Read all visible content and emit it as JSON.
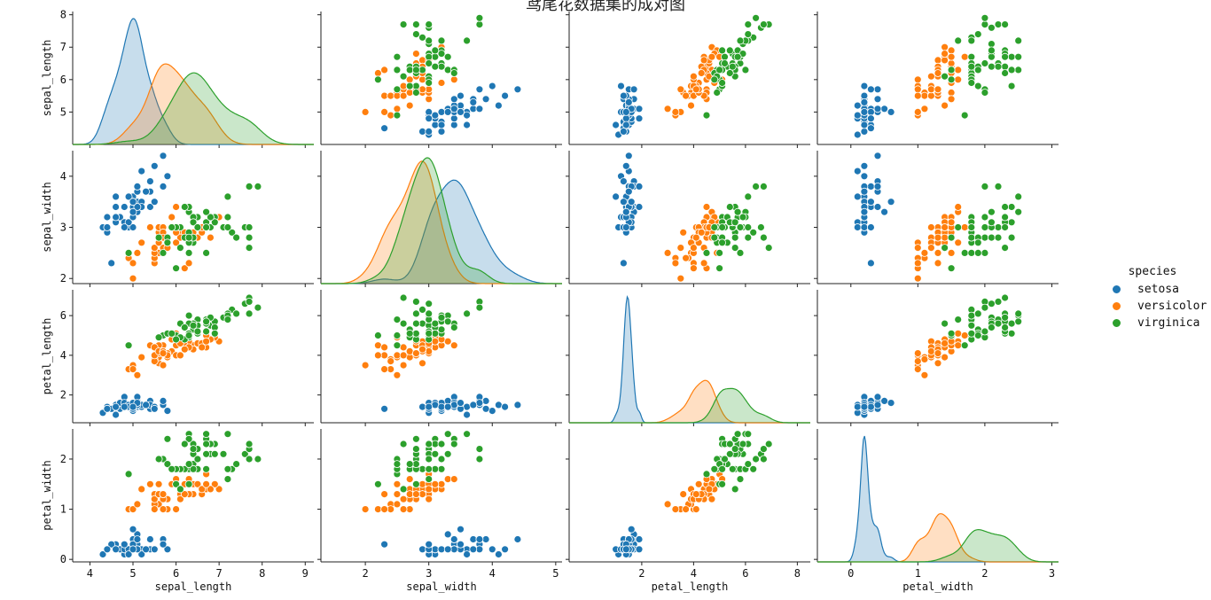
{
  "title": "鸢尾花数据集的成对图",
  "legend": {
    "title": "species",
    "items": [
      {
        "label": "setosa",
        "color": "#1f77b4"
      },
      {
        "label": "versicolor",
        "color": "#ff7f0e"
      },
      {
        "label": "virginica",
        "color": "#2ca02c"
      }
    ]
  },
  "chart_data": {
    "type": "scatter",
    "kind": "pairplot",
    "title": "鸢尾花数据集的成对图",
    "variables": [
      {
        "name": "sepal_length",
        "ticks": [
          4,
          5,
          6,
          7,
          8,
          9
        ],
        "xlim": [
          3.6,
          9.2
        ],
        "ylim": [
          4.0,
          8.1
        ],
        "yticks": [
          5,
          6,
          7,
          8
        ]
      },
      {
        "name": "sepal_width",
        "ticks": [
          2,
          3,
          4,
          5
        ],
        "xlim": [
          1.3,
          5.1
        ],
        "ylim": [
          1.9,
          4.5
        ],
        "yticks": [
          2,
          3,
          4
        ]
      },
      {
        "name": "petal_length",
        "ticks": [
          2,
          4,
          6,
          8
        ],
        "xlim": [
          -0.8,
          8.5
        ],
        "ylim": [
          0.6,
          7.3
        ],
        "yticks": [
          2,
          4,
          6
        ]
      },
      {
        "name": "petal_width",
        "ticks": [
          0,
          1,
          2,
          3
        ],
        "xlim": [
          -0.5,
          3.1
        ],
        "ylim": [
          -0.05,
          2.6
        ],
        "yticks": [
          0,
          1,
          2
        ]
      }
    ],
    "series": [
      {
        "name": "setosa",
        "color": "#1f77b4",
        "points": [
          [
            5.1,
            3.5,
            1.4,
            0.2
          ],
          [
            4.9,
            3.0,
            1.4,
            0.2
          ],
          [
            4.7,
            3.2,
            1.3,
            0.2
          ],
          [
            4.6,
            3.1,
            1.5,
            0.2
          ],
          [
            5.0,
            3.6,
            1.4,
            0.2
          ],
          [
            5.4,
            3.9,
            1.7,
            0.4
          ],
          [
            4.6,
            3.4,
            1.4,
            0.3
          ],
          [
            5.0,
            3.4,
            1.5,
            0.2
          ],
          [
            4.4,
            2.9,
            1.4,
            0.2
          ],
          [
            4.9,
            3.1,
            1.5,
            0.1
          ],
          [
            5.4,
            3.7,
            1.5,
            0.2
          ],
          [
            4.8,
            3.4,
            1.6,
            0.2
          ],
          [
            4.8,
            3.0,
            1.4,
            0.1
          ],
          [
            4.3,
            3.0,
            1.1,
            0.1
          ],
          [
            5.8,
            4.0,
            1.2,
            0.2
          ],
          [
            5.7,
            4.4,
            1.5,
            0.4
          ],
          [
            5.4,
            3.9,
            1.3,
            0.4
          ],
          [
            5.1,
            3.5,
            1.4,
            0.3
          ],
          [
            5.7,
            3.8,
            1.7,
            0.3
          ],
          [
            5.1,
            3.8,
            1.5,
            0.3
          ],
          [
            5.4,
            3.4,
            1.7,
            0.2
          ],
          [
            5.1,
            3.7,
            1.5,
            0.4
          ],
          [
            4.6,
            3.6,
            1.0,
            0.2
          ],
          [
            5.1,
            3.3,
            1.7,
            0.5
          ],
          [
            4.8,
            3.4,
            1.9,
            0.2
          ],
          [
            5.0,
            3.0,
            1.6,
            0.2
          ],
          [
            5.0,
            3.4,
            1.6,
            0.4
          ],
          [
            5.2,
            3.5,
            1.5,
            0.2
          ],
          [
            5.2,
            3.4,
            1.4,
            0.2
          ],
          [
            4.7,
            3.2,
            1.6,
            0.2
          ],
          [
            4.8,
            3.1,
            1.6,
            0.2
          ],
          [
            5.4,
            3.4,
            1.5,
            0.4
          ],
          [
            5.2,
            4.1,
            1.5,
            0.1
          ],
          [
            5.5,
            4.2,
            1.4,
            0.2
          ],
          [
            4.9,
            3.1,
            1.5,
            0.2
          ],
          [
            5.0,
            3.2,
            1.2,
            0.2
          ],
          [
            5.5,
            3.5,
            1.3,
            0.2
          ],
          [
            4.9,
            3.6,
            1.4,
            0.1
          ],
          [
            4.4,
            3.0,
            1.3,
            0.2
          ],
          [
            5.1,
            3.4,
            1.5,
            0.2
          ],
          [
            5.0,
            3.5,
            1.3,
            0.3
          ],
          [
            4.5,
            2.3,
            1.3,
            0.3
          ],
          [
            4.4,
            3.2,
            1.3,
            0.2
          ],
          [
            5.0,
            3.5,
            1.6,
            0.6
          ],
          [
            5.1,
            3.8,
            1.9,
            0.4
          ],
          [
            4.8,
            3.0,
            1.4,
            0.3
          ],
          [
            5.1,
            3.8,
            1.6,
            0.2
          ],
          [
            4.6,
            3.2,
            1.4,
            0.2
          ],
          [
            5.3,
            3.7,
            1.5,
            0.2
          ],
          [
            5.0,
            3.3,
            1.4,
            0.2
          ]
        ]
      },
      {
        "name": "versicolor",
        "color": "#ff7f0e",
        "points": [
          [
            7.0,
            3.2,
            4.7,
            1.4
          ],
          [
            6.4,
            3.2,
            4.5,
            1.5
          ],
          [
            6.9,
            3.1,
            4.9,
            1.5
          ],
          [
            5.5,
            2.3,
            4.0,
            1.3
          ],
          [
            6.5,
            2.8,
            4.6,
            1.5
          ],
          [
            5.7,
            2.8,
            4.5,
            1.3
          ],
          [
            6.3,
            3.3,
            4.7,
            1.6
          ],
          [
            4.9,
            2.4,
            3.3,
            1.0
          ],
          [
            6.6,
            2.9,
            4.6,
            1.3
          ],
          [
            5.2,
            2.7,
            3.9,
            1.4
          ],
          [
            5.0,
            2.0,
            3.5,
            1.0
          ],
          [
            5.9,
            3.0,
            4.2,
            1.5
          ],
          [
            6.0,
            2.2,
            4.0,
            1.0
          ],
          [
            6.1,
            2.9,
            4.7,
            1.4
          ],
          [
            5.6,
            2.9,
            3.6,
            1.3
          ],
          [
            6.7,
            3.1,
            4.4,
            1.4
          ],
          [
            5.6,
            3.0,
            4.5,
            1.5
          ],
          [
            5.8,
            2.7,
            4.1,
            1.0
          ],
          [
            6.2,
            2.2,
            4.5,
            1.5
          ],
          [
            5.6,
            2.5,
            3.9,
            1.1
          ],
          [
            5.9,
            3.2,
            4.8,
            1.8
          ],
          [
            6.1,
            2.8,
            4.0,
            1.3
          ],
          [
            6.3,
            2.5,
            4.9,
            1.5
          ],
          [
            6.1,
            2.8,
            4.7,
            1.2
          ],
          [
            6.4,
            2.9,
            4.3,
            1.3
          ],
          [
            6.6,
            3.0,
            4.4,
            1.4
          ],
          [
            6.8,
            2.8,
            4.8,
            1.4
          ],
          [
            6.7,
            3.0,
            5.0,
            1.7
          ],
          [
            6.0,
            2.9,
            4.5,
            1.5
          ],
          [
            5.7,
            2.6,
            3.5,
            1.0
          ],
          [
            5.5,
            2.4,
            3.8,
            1.1
          ],
          [
            5.5,
            2.4,
            3.7,
            1.0
          ],
          [
            5.8,
            2.7,
            3.9,
            1.2
          ],
          [
            6.0,
            2.7,
            5.1,
            1.6
          ],
          [
            5.4,
            3.0,
            4.5,
            1.5
          ],
          [
            6.0,
            3.4,
            4.5,
            1.6
          ],
          [
            6.7,
            3.1,
            4.7,
            1.5
          ],
          [
            6.3,
            2.3,
            4.4,
            1.3
          ],
          [
            5.6,
            3.0,
            4.1,
            1.3
          ],
          [
            5.5,
            2.5,
            4.0,
            1.3
          ],
          [
            5.5,
            2.6,
            4.4,
            1.2
          ],
          [
            6.1,
            3.0,
            4.6,
            1.4
          ],
          [
            5.8,
            2.6,
            4.0,
            1.2
          ],
          [
            5.0,
            2.3,
            3.3,
            1.0
          ],
          [
            5.6,
            2.7,
            4.2,
            1.3
          ],
          [
            5.7,
            3.0,
            4.2,
            1.2
          ],
          [
            5.7,
            2.9,
            4.2,
            1.3
          ],
          [
            6.2,
            2.9,
            4.3,
            1.3
          ],
          [
            5.1,
            2.5,
            3.0,
            1.1
          ],
          [
            5.7,
            2.8,
            4.1,
            1.3
          ]
        ]
      },
      {
        "name": "virginica",
        "color": "#2ca02c",
        "points": [
          [
            6.3,
            3.3,
            6.0,
            2.5
          ],
          [
            5.8,
            2.7,
            5.1,
            1.9
          ],
          [
            7.1,
            3.0,
            5.9,
            2.1
          ],
          [
            6.3,
            2.9,
            5.6,
            1.8
          ],
          [
            6.5,
            3.0,
            5.8,
            2.2
          ],
          [
            7.6,
            3.0,
            6.6,
            2.1
          ],
          [
            4.9,
            2.5,
            4.5,
            1.7
          ],
          [
            7.3,
            2.9,
            6.3,
            1.8
          ],
          [
            6.7,
            2.5,
            5.8,
            1.8
          ],
          [
            7.2,
            3.6,
            6.1,
            2.5
          ],
          [
            6.5,
            3.2,
            5.1,
            2.0
          ],
          [
            6.4,
            2.7,
            5.3,
            1.9
          ],
          [
            6.8,
            3.0,
            5.5,
            2.1
          ],
          [
            5.7,
            2.5,
            5.0,
            2.0
          ],
          [
            5.8,
            2.8,
            5.1,
            2.4
          ],
          [
            6.4,
            3.2,
            5.3,
            2.3
          ],
          [
            6.5,
            3.0,
            5.5,
            1.8
          ],
          [
            7.7,
            3.8,
            6.7,
            2.2
          ],
          [
            7.7,
            2.6,
            6.9,
            2.3
          ],
          [
            6.0,
            2.2,
            5.0,
            1.5
          ],
          [
            6.9,
            3.2,
            5.7,
            2.3
          ],
          [
            5.6,
            2.8,
            4.9,
            2.0
          ],
          [
            7.7,
            2.8,
            6.7,
            2.0
          ],
          [
            6.3,
            2.7,
            4.9,
            1.8
          ],
          [
            6.7,
            3.3,
            5.7,
            2.1
          ],
          [
            7.2,
            3.2,
            6.0,
            1.8
          ],
          [
            6.2,
            2.8,
            4.8,
            1.8
          ],
          [
            6.1,
            3.0,
            4.9,
            1.8
          ],
          [
            6.4,
            2.8,
            5.6,
            2.1
          ],
          [
            7.2,
            3.0,
            5.8,
            1.6
          ],
          [
            7.4,
            2.8,
            6.1,
            1.9
          ],
          [
            7.9,
            3.8,
            6.4,
            2.0
          ],
          [
            6.4,
            2.8,
            5.6,
            2.2
          ],
          [
            6.3,
            2.8,
            5.1,
            1.5
          ],
          [
            6.1,
            2.6,
            5.6,
            1.4
          ],
          [
            7.7,
            3.0,
            6.1,
            2.3
          ],
          [
            6.3,
            3.4,
            5.6,
            2.4
          ],
          [
            6.4,
            3.1,
            5.5,
            1.8
          ],
          [
            6.0,
            3.0,
            4.8,
            1.8
          ],
          [
            6.9,
            3.1,
            5.4,
            2.1
          ],
          [
            6.7,
            3.1,
            5.6,
            2.4
          ],
          [
            6.9,
            3.1,
            5.1,
            2.3
          ],
          [
            5.8,
            2.7,
            5.1,
            1.9
          ],
          [
            6.8,
            3.2,
            5.9,
            2.3
          ],
          [
            6.7,
            3.3,
            5.7,
            2.5
          ],
          [
            6.7,
            3.0,
            5.2,
            2.3
          ],
          [
            6.3,
            2.5,
            5.0,
            1.9
          ],
          [
            6.5,
            3.0,
            5.2,
            2.0
          ],
          [
            6.2,
            3.4,
            5.4,
            2.3
          ],
          [
            5.9,
            3.0,
            5.1,
            1.8
          ]
        ]
      }
    ],
    "diagonal": "kde",
    "legend": {
      "title": "species",
      "entries": [
        "setosa",
        "versicolor",
        "virginica"
      ],
      "placement": "right"
    }
  }
}
